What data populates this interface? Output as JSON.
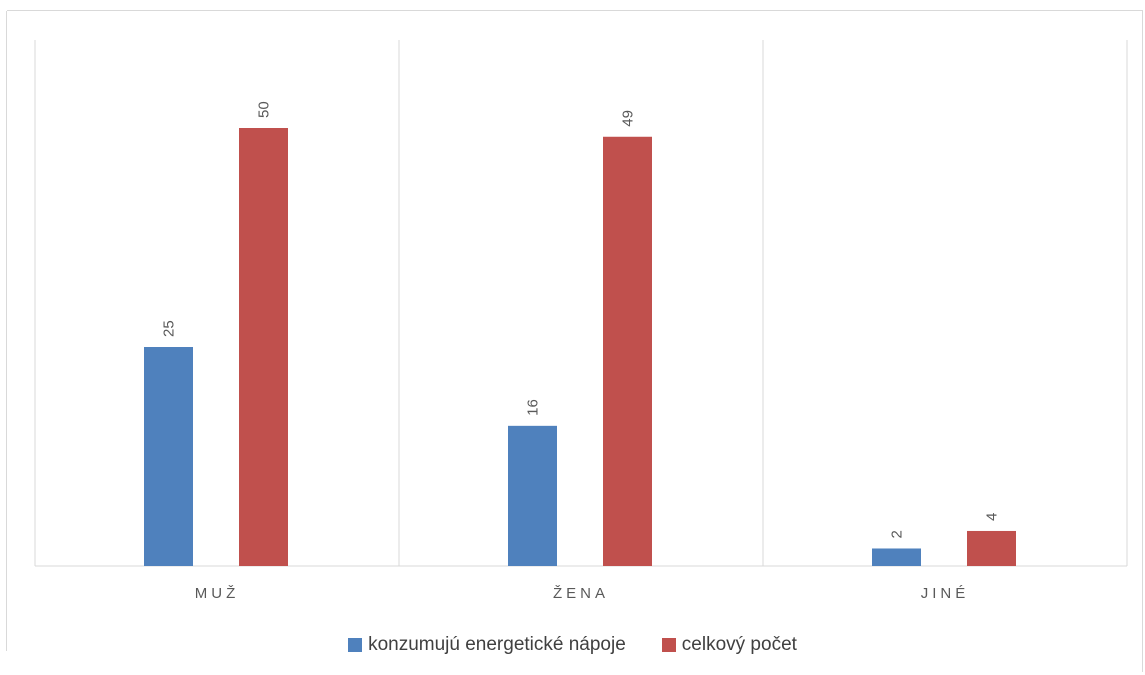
{
  "chart_data": {
    "type": "bar",
    "title": "",
    "xlabel": "",
    "ylabel": "",
    "categories": [
      "MUŽ",
      "ŽENA",
      "JINÉ"
    ],
    "series": [
      {
        "name": "konzumujú energetické nápoje",
        "values": [
          25,
          16,
          2
        ],
        "color": "#4f81bd"
      },
      {
        "name": "celkový počet",
        "values": [
          50,
          49,
          4
        ],
        "color": "#c0504d"
      }
    ],
    "ylim": [
      0,
      55
    ],
    "grid": "vertical category separators",
    "legend_position": "bottom"
  }
}
